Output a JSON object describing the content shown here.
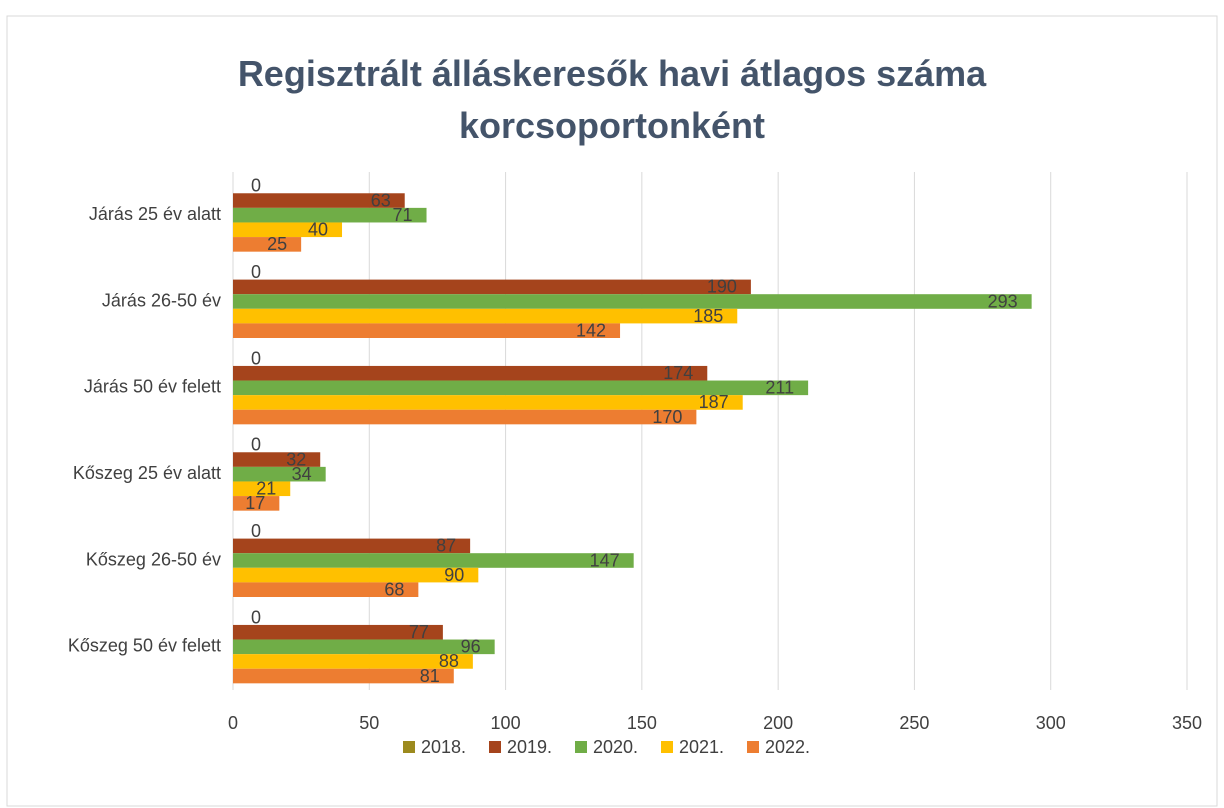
{
  "chart_data": {
    "type": "hbar",
    "title": "Regisztrált álláskeresők havi átlagos száma korcsoportonként",
    "categories": [
      "Járás 25 év alatt",
      "Járás 26-50 év",
      "Járás 50 év felett",
      "Kőszeg 25 év alatt",
      "Kőszeg 26-50 év",
      "Kőszeg 50 év felett"
    ],
    "series": [
      {
        "name": "2018.",
        "color": "#9c8a1e",
        "values": [
          0,
          0,
          0,
          0,
          0,
          0
        ]
      },
      {
        "name": "2019.",
        "color": "#a5441c",
        "values": [
          63,
          190,
          174,
          32,
          87,
          77
        ]
      },
      {
        "name": "2020.",
        "color": "#70ad47",
        "values": [
          71,
          293,
          211,
          34,
          147,
          96
        ]
      },
      {
        "name": "2021.",
        "color": "#ffc000",
        "values": [
          40,
          185,
          187,
          21,
          90,
          88
        ]
      },
      {
        "name": "2022.",
        "color": "#ed7d31",
        "values": [
          25,
          142,
          170,
          17,
          68,
          81
        ]
      }
    ],
    "xlim": [
      0,
      350
    ],
    "xticks": [
      0,
      50,
      100,
      150,
      200,
      250,
      300,
      350
    ],
    "grid": true,
    "legend": "bottom"
  }
}
